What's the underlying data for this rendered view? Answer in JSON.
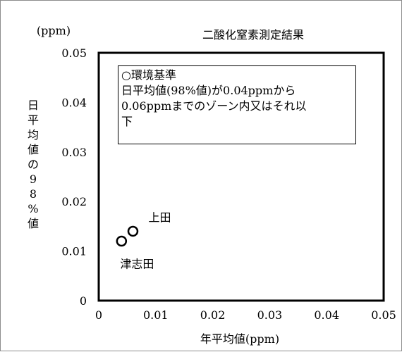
{
  "chart_data": {
    "type": "scatter",
    "title": "二酸化窒素測定結果",
    "xlabel": "年平均値(ppm)",
    "ylabel": "日平均値の98%値",
    "y_unit": "(ppm)",
    "xlim": [
      0,
      0.05
    ],
    "ylim": [
      0,
      0.05
    ],
    "x_ticks": [
      "0",
      "0.01",
      "0.02",
      "0.03",
      "0.04",
      "0.05"
    ],
    "y_ticks": [
      "0",
      "0.01",
      "0.02",
      "0.03",
      "0.04",
      "0.05"
    ],
    "grid": false,
    "points": [
      {
        "label": "上田",
        "x": 0.006,
        "y": 0.014
      },
      {
        "label": "津志田",
        "x": 0.004,
        "y": 0.012
      }
    ],
    "annotation": {
      "title": "○環境基準",
      "lines": [
        "日平均値(98%値)が0.04ppmから",
        "0.06ppmまでのゾーン内又はそれ以",
        "下"
      ]
    },
    "marker_style": "hollow-circle",
    "colors": {
      "axis": "#000000",
      "marker": "#000000",
      "frame_border": "#8c8c8c"
    }
  }
}
